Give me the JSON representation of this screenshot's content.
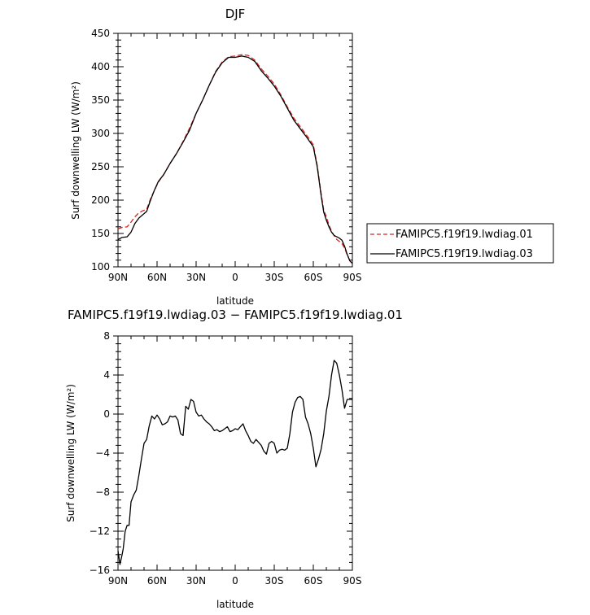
{
  "chart_data": [
    {
      "type": "line",
      "title": "DJF",
      "xlabel": "latitude",
      "ylabel": "Surf downwelling LW (W/m²)",
      "ylim": [
        100,
        450
      ],
      "xlim": [
        90,
        -90
      ],
      "xticks": [
        {
          "value": 90,
          "label": "90N"
        },
        {
          "value": 60,
          "label": "60N"
        },
        {
          "value": 30,
          "label": "30N"
        },
        {
          "value": 0,
          "label": "0"
        },
        {
          "value": -30,
          "label": "30S"
        },
        {
          "value": -60,
          "label": "60S"
        },
        {
          "value": -90,
          "label": "90S"
        }
      ],
      "yticks": [
        100,
        150,
        200,
        250,
        300,
        350,
        400,
        450
      ],
      "legend": "right",
      "series": [
        {
          "name": "FAMIPC5.f19f19.lwdiag.01",
          "color": "#dd2222",
          "dash": "dashed",
          "x": [
            90,
            87,
            83,
            80,
            77,
            74,
            71,
            68,
            65,
            62,
            59,
            55,
            50,
            45,
            40,
            35,
            30,
            25,
            20,
            15,
            10,
            5,
            0,
            -5,
            -10,
            -15,
            -20,
            -25,
            -30,
            -35,
            -40,
            -45,
            -50,
            -55,
            -60,
            -63,
            -66,
            -68,
            -70,
            -72,
            -74,
            -76,
            -78,
            -80,
            -82,
            -84,
            -86,
            -88,
            -90
          ],
          "y": [
            157,
            159,
            160,
            167,
            175,
            181,
            184,
            186,
            202,
            215,
            227,
            238,
            255,
            270,
            288,
            308,
            330,
            350,
            372,
            393,
            407,
            415,
            416,
            418,
            417,
            410,
            397,
            386,
            374,
            358,
            340,
            323,
            310,
            297,
            283,
            252,
            210,
            185,
            175,
            163,
            153,
            147,
            141,
            138,
            135,
            128,
            118,
            110,
            107
          ]
        },
        {
          "name": "FAMIPC5.f19f19.lwdiag.03",
          "color": "#000000",
          "dash": "solid",
          "x": [
            90,
            87,
            83,
            80,
            77,
            74,
            71,
            68,
            65,
            62,
            59,
            55,
            50,
            45,
            40,
            35,
            30,
            25,
            20,
            15,
            10,
            5,
            0,
            -5,
            -10,
            -15,
            -20,
            -25,
            -30,
            -35,
            -40,
            -45,
            -50,
            -55,
            -60,
            -63,
            -66,
            -68,
            -70,
            -72,
            -74,
            -76,
            -78,
            -80,
            -82,
            -84,
            -86,
            -88,
            -90
          ],
          "y": [
            141,
            144,
            145,
            152,
            165,
            173,
            178,
            183,
            200,
            215,
            228,
            238,
            255,
            270,
            287,
            305,
            330,
            350,
            372,
            392,
            406,
            414,
            414,
            416,
            414,
            408,
            394,
            383,
            371,
            356,
            338,
            320,
            307,
            294,
            280,
            250,
            207,
            182,
            170,
            160,
            152,
            147,
            145,
            143,
            140,
            131,
            119,
            109,
            105
          ]
        }
      ]
    },
    {
      "type": "line",
      "title": "FAMIPC5.f19f19.lwdiag.03 − FAMIPC5.f19f19.lwdiag.01",
      "xlabel": "latitude",
      "ylabel": "Surf downwelling LW (W/m²)",
      "ylim": [
        -16,
        8
      ],
      "xlim": [
        90,
        -90
      ],
      "xticks": [
        {
          "value": 90,
          "label": "90N"
        },
        {
          "value": 60,
          "label": "60N"
        },
        {
          "value": 30,
          "label": "30N"
        },
        {
          "value": 0,
          "label": "0"
        },
        {
          "value": -30,
          "label": "30S"
        },
        {
          "value": -60,
          "label": "60S"
        },
        {
          "value": -90,
          "label": "90S"
        }
      ],
      "yticks": [
        8,
        4,
        0,
        -4,
        -8,
        -12,
        -16
      ],
      "series": [
        {
          "color": "#000000",
          "x": [
            90,
            88.5,
            87,
            86,
            84.5,
            83,
            81.5,
            80,
            78,
            76,
            74,
            72,
            70,
            68,
            66,
            64,
            62,
            60,
            58,
            56,
            54,
            52,
            50,
            48,
            46,
            44,
            42,
            40,
            38,
            36,
            34,
            32,
            30,
            28,
            26,
            24,
            22,
            20,
            18,
            16,
            14,
            12,
            10,
            8,
            6,
            4,
            2,
            0,
            -2,
            -4,
            -6,
            -8,
            -10,
            -12,
            -14,
            -16,
            -18,
            -20,
            -22,
            -24,
            -26,
            -28,
            -30,
            -32,
            -34,
            -36,
            -38,
            -40,
            -42,
            -44,
            -46,
            -48,
            -50,
            -52,
            -54,
            -56,
            -58,
            -60,
            -62,
            -64,
            -66,
            -68,
            -70,
            -72,
            -74,
            -76,
            -78,
            -80,
            -82,
            -84,
            -86,
            -88,
            -90
          ],
          "y": [
            -14.0,
            -15.4,
            -14.5,
            -13.8,
            -12.0,
            -11.4,
            -11.4,
            -9.0,
            -8.3,
            -7.8,
            -6.3,
            -4.6,
            -3.0,
            -2.6,
            -1.2,
            -0.2,
            -0.5,
            -0.1,
            -0.5,
            -1.1,
            -1.0,
            -0.8,
            -0.2,
            -0.3,
            -0.2,
            -0.6,
            -2.0,
            -2.2,
            0.8,
            0.5,
            1.5,
            1.3,
            0.2,
            -0.2,
            -0.1,
            -0.5,
            -0.8,
            -1.0,
            -1.3,
            -1.7,
            -1.6,
            -1.8,
            -1.7,
            -1.5,
            -1.3,
            -1.8,
            -1.7,
            -1.5,
            -1.6,
            -1.3,
            -1.0,
            -1.7,
            -2.2,
            -2.8,
            -3.0,
            -2.6,
            -2.9,
            -3.2,
            -3.8,
            -4.1,
            -3.0,
            -2.8,
            -3.0,
            -4.0,
            -3.7,
            -3.6,
            -3.7,
            -3.5,
            -2.0,
            0.2,
            1.2,
            1.7,
            1.8,
            1.5,
            -0.3,
            -1.0,
            -2.0,
            -3.5,
            -5.4,
            -4.6,
            -3.6,
            -2.0,
            0.3,
            1.8,
            4.0,
            5.5,
            5.2,
            4.0,
            2.5,
            0.6,
            1.5,
            1.5,
            1.5
          ]
        }
      ]
    }
  ]
}
